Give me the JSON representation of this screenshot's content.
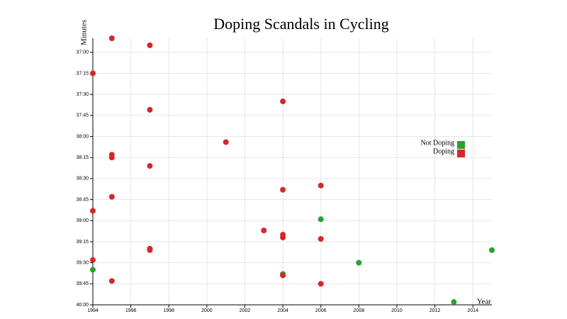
{
  "chart_data": {
    "type": "scatter",
    "title": "Doping Scandals in Cycling",
    "x_label": "Year",
    "y_label": "Minutes",
    "xlim": [
      1994,
      2015
    ],
    "xticks": [
      1994,
      1996,
      1998,
      2000,
      2002,
      2004,
      2006,
      2008,
      2010,
      2012,
      2014
    ],
    "ylim": [
      2400,
      2210
    ],
    "yticks": [
      {
        "value": 2220,
        "label": "37:00"
      },
      {
        "value": 2235,
        "label": "37:15"
      },
      {
        "value": 2250,
        "label": "37:30"
      },
      {
        "value": 2265,
        "label": "37:45"
      },
      {
        "value": 2280,
        "label": "38:00"
      },
      {
        "value": 2295,
        "label": "38:15"
      },
      {
        "value": 2310,
        "label": "38:30"
      },
      {
        "value": 2325,
        "label": "38:45"
      },
      {
        "value": 2340,
        "label": "39:00"
      },
      {
        "value": 2355,
        "label": "39:15"
      },
      {
        "value": 2370,
        "label": "39:30"
      },
      {
        "value": 2385,
        "label": "39:45"
      },
      {
        "value": 2400,
        "label": "40:00"
      }
    ],
    "grid": true,
    "legend": "right",
    "series": [
      {
        "name": "Not Doping",
        "color": "#2ca02c",
        "x": [
          2006,
          2015,
          2008,
          1994,
          2004,
          2013
        ],
        "values": [
          2339,
          2361,
          2370,
          2375,
          2378,
          2398
        ]
      },
      {
        "name": "Doping",
        "color": "#d62728",
        "x": [
          1995,
          1997,
          1994,
          2004,
          1997,
          2001,
          1995,
          1995,
          1997,
          2006,
          2004,
          1995,
          1994,
          2003,
          2004,
          2004,
          2006,
          1997,
          1997,
          1994,
          1995,
          2004,
          2006
        ],
        "values": [
          2210,
          2215,
          2235,
          2255,
          2261,
          2284,
          2293,
          2295,
          2301,
          2315,
          2318,
          2323,
          2333,
          2347,
          2350,
          2352,
          2353,
          2360,
          2361,
          2368,
          2383,
          2379,
          2385
        ]
      }
    ]
  }
}
